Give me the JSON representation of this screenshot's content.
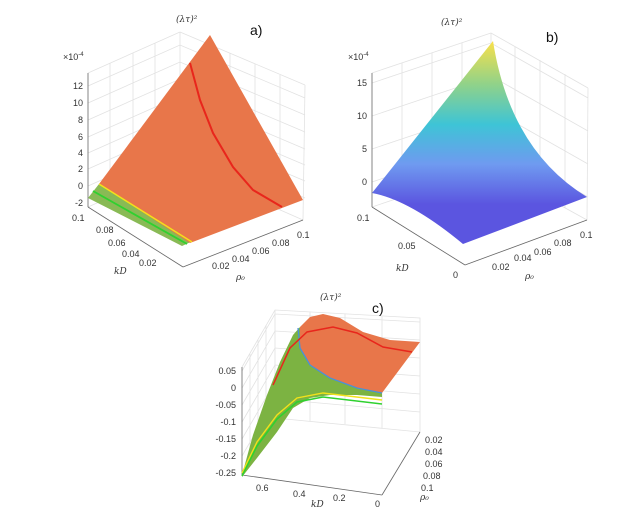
{
  "chart_data": [
    {
      "type": "surface",
      "panel_label": "a)",
      "title": "(λτ)²",
      "xlabel": "ρ₀",
      "ylabel": "kD",
      "z_scale_label": "×10",
      "z_scale_exponent": "-4",
      "x_ticks": [
        "0.02",
        "0.04",
        "0.06",
        "0.08",
        "0.1"
      ],
      "y_ticks": [
        "0.1",
        "0.08",
        "0.06",
        "0.04",
        "0.02"
      ],
      "z_ticks": [
        "12",
        "10",
        "8",
        "6",
        "4",
        "2",
        "0",
        "-2"
      ],
      "zlim": [
        -2,
        13
      ],
      "grid": true,
      "colors": {
        "surface": "#e8764a",
        "region_negative": "#7cb342",
        "curve_red": "#e8261c",
        "curve_yellow": "#f2e21a",
        "curve_green": "#2fd12f"
      }
    },
    {
      "type": "surface",
      "panel_label": "b)",
      "title": "(λτ)²",
      "xlabel": "ρ₀",
      "ylabel": "kD",
      "z_scale_label": "×10",
      "z_scale_exponent": "-4",
      "x_ticks": [
        "0.02",
        "0.04",
        "0.06",
        "0.08",
        "0.1"
      ],
      "y_ticks": [
        "0.1",
        "0.05",
        "0"
      ],
      "z_ticks": [
        "15",
        "10",
        "5",
        "0"
      ],
      "zlim": [
        -2,
        17
      ],
      "grid": true,
      "colormap": "parula",
      "colors": {
        "low": "#5b55e0",
        "mid": "#3ec4d6",
        "high": "#f9e04a"
      }
    },
    {
      "type": "surface",
      "panel_label": "c)",
      "title": "(λτ)²",
      "xlabel": "ρ₀",
      "ylabel": "kD",
      "x_ticks": [
        "0.02",
        "0.04",
        "0.06",
        "0.08",
        "0.1"
      ],
      "y_ticks": [
        "0.6",
        "0.4",
        "0.2",
        "0"
      ],
      "z_ticks": [
        "0.05",
        "0",
        "-0.05",
        "-0.1",
        "-0.15",
        "-0.2",
        "-0.25"
      ],
      "zlim": [
        -0.25,
        0.06
      ],
      "grid": true,
      "colors": {
        "surface": "#e8764a",
        "region_negative": "#7cb342",
        "curve_red": "#e8261c",
        "curve_blue": "#4a90d9",
        "curve_yellow": "#f2e21a",
        "curve_green": "#2fd12f"
      }
    }
  ]
}
